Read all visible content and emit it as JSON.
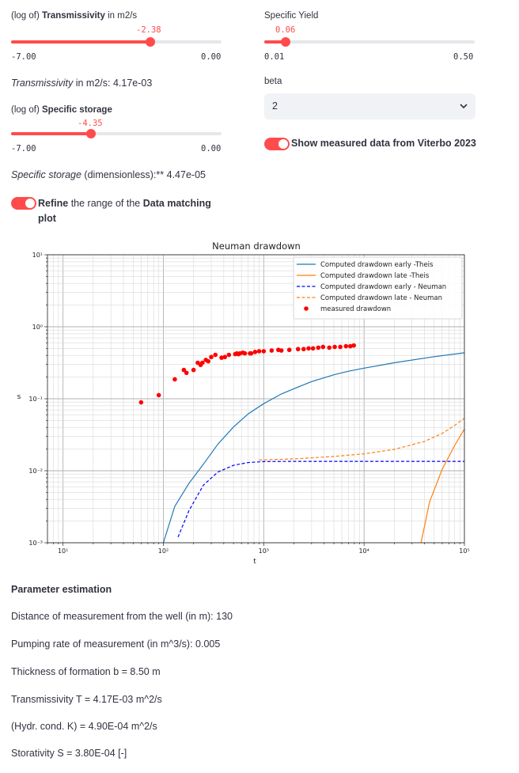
{
  "transmissivity_slider": {
    "label_prefix": "(log of)",
    "label_main": "Transmissivity",
    "label_suffix": "in m2/s",
    "value": "-2.38",
    "min": "-7.00",
    "max": "0.00",
    "fraction": 0.66
  },
  "transmissivity_readout": {
    "label": "Transmissivity",
    "rest": "in m2/s: 4.17e-03"
  },
  "storage_slider": {
    "label_prefix": "(log of)",
    "label_main": "Specific storage",
    "value": "-4.35",
    "min": "-7.00",
    "max": "0.00",
    "fraction": 0.38
  },
  "storage_readout": {
    "label": "Specific storage",
    "rest": "(dimensionless):** 4.47e-05"
  },
  "refine_toggle": {
    "bold1": "Refine",
    "mid": "the range of the",
    "bold2": "Data matching",
    "bold3": "plot",
    "on": true
  },
  "specific_yield_slider": {
    "label": "Specific Yield",
    "value": "0.06",
    "min": "0.01",
    "max": "0.50",
    "fraction": 0.1
  },
  "beta_select": {
    "label": "beta",
    "value": "2",
    "chevron": "chevron-down-icon"
  },
  "measured_toggle": {
    "label": "Show measured data from Viterbo 2023",
    "on": true
  },
  "colors": {
    "accent": "#ff4b4b",
    "theis": "#1f77b4",
    "late": "#ff7f0e",
    "neuman_early": "#0000ff",
    "measured": "#ff0000"
  },
  "chart_data": {
    "type": "line",
    "title": "Neuman drawdown",
    "xlabel": "t",
    "ylabel": "s",
    "xscale": "log",
    "yscale": "log",
    "xlim": [
      7,
      100000
    ],
    "ylim": [
      0.001,
      10
    ],
    "xticks": [
      "10¹",
      "10²",
      "10³",
      "10⁴",
      "10⁵"
    ],
    "yticks": [
      "10⁻³",
      "10⁻²",
      "10⁻¹",
      "10⁰",
      "10¹"
    ],
    "grid": true,
    "legend_position": "top-right",
    "series": [
      {
        "name": "Computed drawdown early -Theis",
        "style": "solid",
        "color": "#1f77b4",
        "x": [
          100,
          130,
          180,
          250,
          350,
          500,
          700,
          1000,
          1500,
          2000,
          3000,
          5000,
          7000,
          10000,
          20000,
          50000,
          100000
        ],
        "y": [
          0.001,
          0.0032,
          0.0067,
          0.0123,
          0.0235,
          0.0405,
          0.0617,
          0.0855,
          0.1166,
          0.138,
          0.173,
          0.215,
          0.241,
          0.266,
          0.316,
          0.384,
          0.435
        ]
      },
      {
        "name": "Computed drawdown late -Theis",
        "style": "solid",
        "color": "#ff7f0e",
        "x": [
          37000,
          45000,
          60000,
          80000,
          100000
        ],
        "y": [
          0.001,
          0.0037,
          0.0105,
          0.0225,
          0.038
        ]
      },
      {
        "name": "Computed drawdown early - Neuman",
        "style": "dashed",
        "color": "#0000ff",
        "x": [
          140,
          180,
          250,
          350,
          500,
          700,
          1000,
          2000,
          100000
        ],
        "y": [
          0.0012,
          0.0028,
          0.0063,
          0.0096,
          0.0119,
          0.013,
          0.0134,
          0.0135,
          0.0135
        ]
      },
      {
        "name": "Computed drawdown late - Neuman",
        "style": "dashed",
        "color": "#ff7f0e",
        "x": [
          900,
          2000,
          5000,
          10000,
          20000,
          40000,
          60000,
          80000,
          100000
        ],
        "y": [
          0.0141,
          0.0146,
          0.0158,
          0.0172,
          0.0198,
          0.0256,
          0.033,
          0.0426,
          0.0537
        ]
      },
      {
        "name": "measured drawdown",
        "style": "marker",
        "color": "#ff0000",
        "x": [
          60,
          90,
          130,
          160,
          170,
          200,
          220,
          235,
          245,
          265,
          280,
          300,
          330,
          380,
          410,
          450,
          520,
          540,
          560,
          580,
          620,
          650,
          730,
          750,
          820,
          900,
          1000,
          1200,
          1400,
          1500,
          1800,
          2200,
          2500,
          2800,
          3100,
          3500,
          3900,
          4500,
          5100,
          5800,
          6600,
          7300,
          7900
        ],
        "y": [
          0.0891,
          0.1122,
          0.1862,
          0.2512,
          0.2291,
          0.2512,
          0.3162,
          0.2951,
          0.3162,
          0.3467,
          0.3311,
          0.3802,
          0.4074,
          0.3715,
          0.3802,
          0.4074,
          0.4169,
          0.4266,
          0.4168,
          0.4266,
          0.4365,
          0.4266,
          0.4266,
          0.4266,
          0.4467,
          0.4571,
          0.4571,
          0.4677,
          0.4775,
          0.4677,
          0.4775,
          0.4898,
          0.4898,
          0.5012,
          0.5012,
          0.5128,
          0.5248,
          0.5128,
          0.5248,
          0.5248,
          0.5369,
          0.5369,
          0.5495
        ]
      }
    ]
  },
  "estimation": {
    "heading": "Parameter estimation",
    "lines": [
      "Distance of measurement from the well (in m): 130",
      "Pumping rate of measurement (in m^3/s): 0.005",
      "Thickness of formation b = 8.50 m",
      "Transmissivity T = 4.17E-03 m^2/s",
      "(Hydr. cond. K) = 4.90E-04 m^2/s",
      "Storativity S = 3.80E-04 [-]"
    ]
  }
}
